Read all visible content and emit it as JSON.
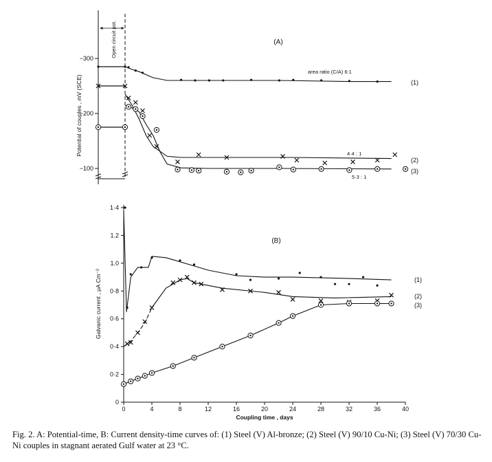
{
  "chart_data": [
    {
      "type": "line",
      "panel_label": "(A)",
      "ylabel": "Potential of couples , mV (SCE)",
      "open_circuit_label": "Open circuit pot.",
      "yticks": [
        "-300",
        "-200",
        "-100"
      ],
      "ylim": [
        -90,
        -300
      ],
      "xlim": [
        0,
        40
      ],
      "annotations": {
        "area_ratio": "area ratio (C/A) 6:1",
        "ratio_2": "4·4 : 1",
        "ratio_3": "5·3 : 1"
      },
      "series": [
        {
          "name": "(1)",
          "marker": "dot",
          "open_circuit": -285,
          "line": [
            [
              0,
              -285
            ],
            [
              1,
              -280
            ],
            [
              2,
              -276
            ],
            [
              4,
              -265
            ],
            [
              6,
              -260
            ],
            [
              12,
              -260
            ],
            [
              22,
              -260
            ],
            [
              32,
              -258
            ],
            [
              38,
              -258
            ]
          ],
          "points": [
            [
              0.5,
              -284
            ],
            [
              1.5,
              -278
            ],
            [
              2.5,
              -274
            ],
            [
              8,
              -261
            ],
            [
              10,
              -260
            ],
            [
              12,
              -260
            ],
            [
              14,
              -260
            ],
            [
              18,
              -261
            ],
            [
              22,
              -260
            ],
            [
              24,
              -261
            ],
            [
              28,
              -260
            ],
            [
              32,
              -259
            ],
            [
              36,
              -258
            ]
          ]
        },
        {
          "name": "(2)",
          "marker": "x",
          "open_circuit": -250,
          "line": [
            [
              0,
              -235
            ],
            [
              1,
              -215
            ],
            [
              2,
              -190
            ],
            [
              3,
              -160
            ],
            [
              4,
              -140
            ],
            [
              6,
              -122
            ],
            [
              8,
              -120
            ],
            [
              14,
              -120
            ],
            [
              24,
              -120
            ],
            [
              38,
              -118
            ]
          ],
          "points": [
            [
              0.5,
              -228
            ],
            [
              1.5,
              -220
            ],
            [
              2.5,
              -205
            ],
            [
              3.5,
              -160
            ],
            [
              4.5,
              -140
            ],
            [
              7.5,
              -112
            ],
            [
              10.5,
              -125
            ],
            [
              14.5,
              -120
            ],
            [
              22.5,
              -122
            ],
            [
              24.5,
              -115
            ],
            [
              28.5,
              -110
            ],
            [
              32.5,
              -112
            ],
            [
              36,
              -115
            ],
            [
              38.5,
              -125
            ]
          ]
        },
        {
          "name": "(3)",
          "marker": "circle",
          "open_circuit": -175,
          "line": [
            [
              0,
              -215
            ],
            [
              1,
              -210
            ],
            [
              2,
              -203
            ],
            [
              3,
              -180
            ],
            [
              4,
              -160
            ],
            [
              5,
              -130
            ],
            [
              6,
              -108
            ],
            [
              8,
              -101
            ],
            [
              12,
              -100
            ],
            [
              22,
              -100
            ],
            [
              38,
              -99
            ]
          ],
          "points": [
            [
              0.5,
              -212
            ],
            [
              1.5,
              -208
            ],
            [
              2.5,
              -195
            ],
            [
              4.5,
              -170
            ],
            [
              7.5,
              -98
            ],
            [
              9.5,
              -97
            ],
            [
              10.5,
              -96
            ],
            [
              14.5,
              -94
            ],
            [
              16.5,
              -93
            ],
            [
              18,
              -96
            ],
            [
              22,
              -102
            ],
            [
              24,
              -98
            ],
            [
              28,
              -99
            ],
            [
              32,
              -97
            ],
            [
              36,
              -99
            ],
            [
              40,
              -99
            ]
          ]
        }
      ]
    },
    {
      "type": "line",
      "panel_label": "(B)",
      "ylabel": "Galvanic current , μA Cm⁻²",
      "xlabel": "Coupling time , days",
      "xticks": [
        "0",
        "4",
        "8",
        "12",
        "16",
        "20",
        "24",
        "28",
        "32",
        "36",
        "40"
      ],
      "yticks": [
        "0",
        "0·2",
        "0·4",
        "0·6",
        "0·8",
        "1.0",
        "1.2",
        "1·4"
      ],
      "xlim": [
        0,
        40
      ],
      "ylim": [
        0,
        1.42
      ],
      "series": [
        {
          "name": "(1)",
          "marker": "dot",
          "line": [
            [
              0,
              1.38
            ],
            [
              0.4,
              0.65
            ],
            [
              1,
              0.9
            ],
            [
              2,
              0.97
            ],
            [
              3.5,
              0.97
            ],
            [
              4,
              1.05
            ],
            [
              6,
              1.04
            ],
            [
              8,
              1.01
            ],
            [
              10,
              0.98
            ],
            [
              12,
              0.95
            ],
            [
              16,
              0.91
            ],
            [
              20,
              0.9
            ],
            [
              24,
              0.9
            ],
            [
              32,
              0.89
            ],
            [
              38,
              0.88
            ]
          ],
          "points": [
            [
              0.2,
              1.4
            ],
            [
              0.5,
              0.68
            ],
            [
              1,
              0.92
            ],
            [
              2.5,
              0.97
            ],
            [
              4,
              1.04
            ],
            [
              8,
              1.02
            ],
            [
              10,
              0.99
            ],
            [
              16,
              0.92
            ],
            [
              18,
              0.88
            ],
            [
              22,
              0.89
            ],
            [
              25,
              0.93
            ],
            [
              28,
              0.9
            ],
            [
              30,
              0.85
            ],
            [
              32,
              0.85
            ],
            [
              34,
              0.9
            ],
            [
              36,
              0.84
            ]
          ]
        },
        {
          "name": "(2)",
          "marker": "x",
          "line": [
            [
              0,
              0.4
            ],
            [
              1,
              0.44
            ],
            [
              2,
              0.5
            ],
            [
              3,
              0.57
            ],
            [
              4,
              0.68
            ],
            [
              6,
              0.82
            ],
            [
              8,
              0.88
            ],
            [
              9,
              0.89
            ],
            [
              10,
              0.86
            ],
            [
              14,
              0.82
            ],
            [
              20,
              0.79
            ],
            [
              24,
              0.76
            ],
            [
              30,
              0.75
            ],
            [
              38,
              0.76
            ]
          ],
          "points": [
            [
              0.5,
              0.42
            ],
            [
              1,
              0.43
            ],
            [
              2,
              0.5
            ],
            [
              3,
              0.58
            ],
            [
              4,
              0.68
            ],
            [
              7,
              0.86
            ],
            [
              8,
              0.88
            ],
            [
              9,
              0.9
            ],
            [
              10,
              0.86
            ],
            [
              11,
              0.85
            ],
            [
              14,
              0.81
            ],
            [
              18,
              0.8
            ],
            [
              22,
              0.79
            ],
            [
              24,
              0.74
            ],
            [
              28,
              0.73
            ],
            [
              32,
              0.72
            ],
            [
              36,
              0.73
            ],
            [
              38,
              0.77
            ]
          ]
        },
        {
          "name": "(3)",
          "marker": "circle",
          "line": [
            [
              0,
              0.13
            ],
            [
              1,
              0.15
            ],
            [
              2,
              0.17
            ],
            [
              3,
              0.19
            ],
            [
              4,
              0.21
            ],
            [
              7,
              0.26
            ],
            [
              10,
              0.32
            ],
            [
              14,
              0.4
            ],
            [
              18,
              0.48
            ],
            [
              22,
              0.57
            ],
            [
              24,
              0.62
            ],
            [
              28,
              0.7
            ],
            [
              32,
              0.71
            ],
            [
              36,
              0.71
            ],
            [
              38,
              0.71
            ]
          ],
          "points": [
            [
              0,
              0.13
            ],
            [
              1,
              0.15
            ],
            [
              2,
              0.17
            ],
            [
              3,
              0.19
            ],
            [
              4,
              0.21
            ],
            [
              7,
              0.26
            ],
            [
              10,
              0.32
            ],
            [
              14,
              0.4
            ],
            [
              18,
              0.48
            ],
            [
              22,
              0.57
            ],
            [
              24,
              0.62
            ],
            [
              28,
              0.7
            ],
            [
              32,
              0.71
            ],
            [
              36,
              0.71
            ],
            [
              38,
              0.71
            ]
          ]
        }
      ]
    }
  ],
  "caption": "Fig. 2. A: Potential-time, B: Current density-time curves of: (1) Steel (V) Al-bronze; (2) Steel (V) 90/10 Cu-Ni; (3) Steel (V) 70/30 Cu-Ni couples in stagnant aerated Gulf water at 23 °C."
}
